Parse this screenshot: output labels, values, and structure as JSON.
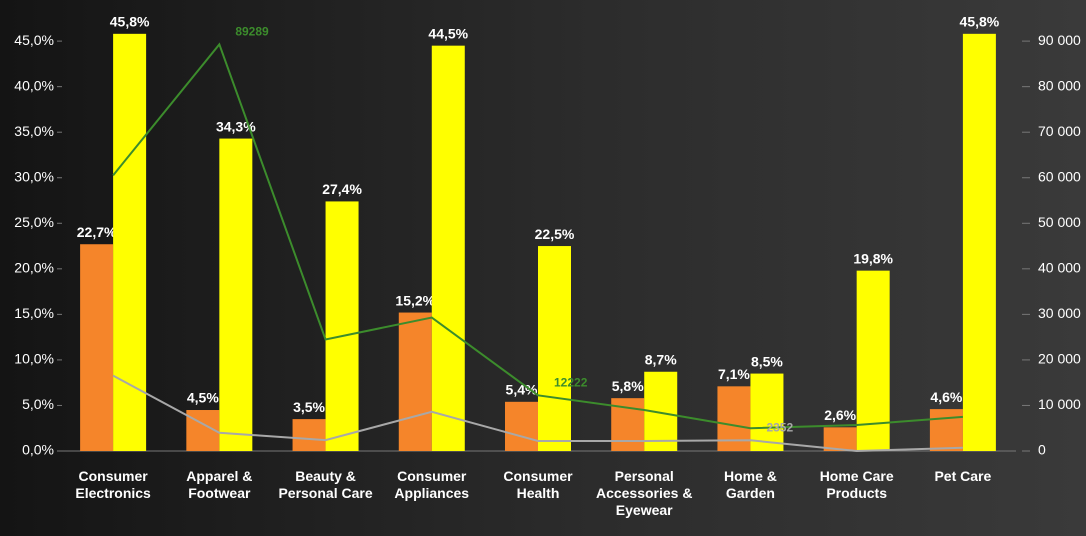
{
  "chart_data": {
    "type": "bar",
    "categories": [
      "Consumer Electronics",
      "Apparel & Footwear",
      "Beauty & Personal Care",
      "Consumer Appliances",
      "Consumer Health",
      "Personal Accessories & Eyewear",
      "Home & Garden",
      "Home Care Products",
      "Pet Care"
    ],
    "series": [
      {
        "type": "bar",
        "color": "#f5852a",
        "values": [
          22.7,
          4.5,
          3.5,
          15.2,
          5.4,
          5.8,
          7.1,
          2.6,
          4.6
        ],
        "value_labels": [
          "22,7%",
          "4,5%",
          "3,5%",
          "15,2%",
          "5,4%",
          "5,8%",
          "7,1%",
          "2,6%",
          "4,6%"
        ]
      },
      {
        "type": "bar",
        "color": "#ffff00",
        "values": [
          45.8,
          34.3,
          27.4,
          44.5,
          22.5,
          8.7,
          8.5,
          19.8,
          45.8
        ],
        "value_labels": [
          "45,8%",
          "34,3%",
          "27,4%",
          "44,5%",
          "22,5%",
          "8,7%",
          "8,5%",
          "19,8%",
          "45,8%"
        ]
      },
      {
        "type": "line",
        "axis": "y2",
        "color": "#3c8c2c",
        "values": [
          60528,
          89289,
          24500,
          29300,
          12222,
          9000,
          5000,
          5700,
          7500
        ],
        "value_labels": [
          null,
          "89289",
          null,
          null,
          "12222",
          null,
          null,
          null,
          null
        ]
      },
      {
        "type": "line",
        "axis": "y2",
        "color": "#a8a8a8",
        "values": [
          16550,
          4000,
          2400,
          8600,
          2200,
          2200,
          2352,
          0,
          700
        ],
        "value_labels": [
          null,
          null,
          null,
          null,
          null,
          null,
          "2352",
          null,
          null
        ]
      }
    ],
    "ylim": [
      0,
      46
    ],
    "yticks": [
      {
        "value": 0,
        "label": "0,0%"
      },
      {
        "value": 5,
        "label": "5,0%"
      },
      {
        "value": 10,
        "label": "10,0%"
      },
      {
        "value": 15,
        "label": "15,0%"
      },
      {
        "value": 20,
        "label": "20,0%"
      },
      {
        "value": 25,
        "label": "25,0%"
      },
      {
        "value": 30,
        "label": "30,0%"
      },
      {
        "value": 35,
        "label": "35,0%"
      },
      {
        "value": 40,
        "label": "40,0%"
      },
      {
        "value": 45,
        "label": "45,0%"
      }
    ],
    "y2lim": [
      0,
      92000
    ],
    "y2ticks": [
      0,
      {
        "value": 10000,
        "label": "10 000"
      },
      {
        "value": 20000,
        "label": "20 000"
      },
      {
        "value": 30000,
        "label": "30 000"
      },
      {
        "value": 40000,
        "label": "40 000"
      },
      {
        "value": 50000,
        "label": "50 000"
      },
      {
        "value": 60000,
        "label": "60 000"
      },
      {
        "value": 70000,
        "label": "70 000"
      },
      {
        "value": 80000,
        "label": "80 000"
      },
      {
        "value": 90000,
        "label": "90 000"
      }
    ],
    "grid": false
  }
}
